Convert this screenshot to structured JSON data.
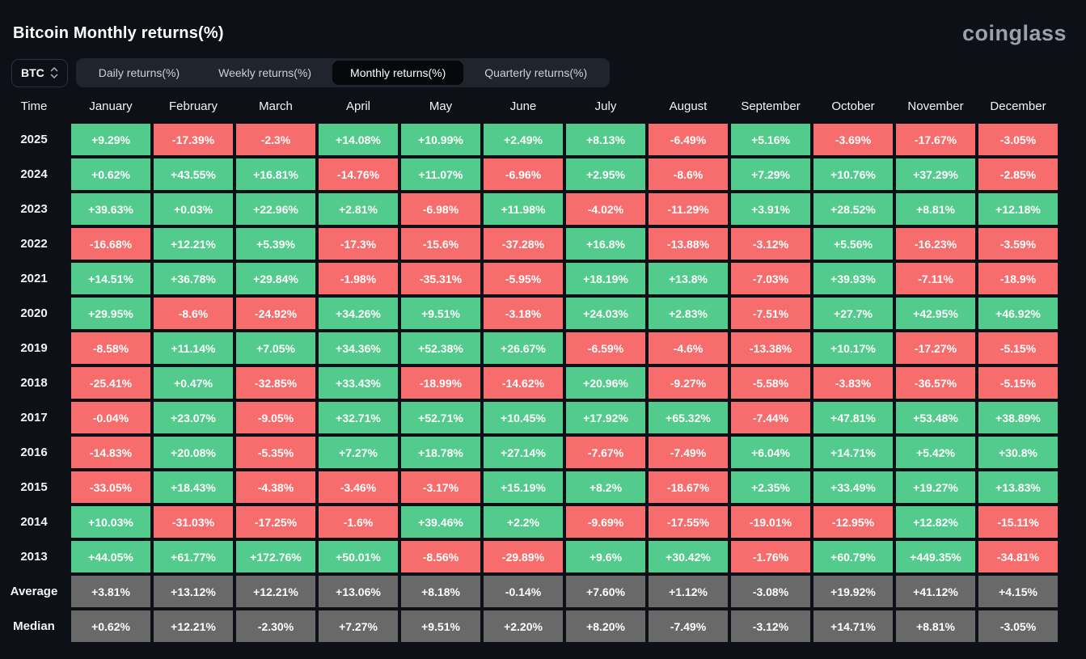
{
  "page": {
    "title": "Bitcoin Monthly returns(%)",
    "brand": "coinglass"
  },
  "controls": {
    "coin_select": {
      "value": "BTC",
      "icon": "updown-chevrons-icon"
    },
    "tabs": [
      {
        "label": "Daily returns(%)",
        "active": false
      },
      {
        "label": "Weekly returns(%)",
        "active": false
      },
      {
        "label": "Monthly returns(%)",
        "active": true
      },
      {
        "label": "Quarterly returns(%)",
        "active": false
      }
    ]
  },
  "colors": {
    "background": "#0d1016",
    "positive_cell": "#52cb8c",
    "negative_cell": "#f76d6d",
    "summary_cell": "#696969",
    "active_tab_bg": "#06080c",
    "brand_text": "#99a1ac"
  },
  "chart_data": {
    "type": "heatmap",
    "title": "Bitcoin Monthly returns(%)",
    "row_header": "Time",
    "columns": [
      "January",
      "February",
      "March",
      "April",
      "May",
      "June",
      "July",
      "August",
      "September",
      "October",
      "November",
      "December"
    ],
    "rows": [
      {
        "label": "2025",
        "values": [
          "+9.29%",
          "-17.39%",
          "-2.3%",
          "+14.08%",
          "+10.99%",
          "+2.49%",
          "+8.13%",
          "-6.49%",
          "+5.16%",
          "-3.69%",
          "-17.67%",
          "-3.05%"
        ]
      },
      {
        "label": "2024",
        "values": [
          "+0.62%",
          "+43.55%",
          "+16.81%",
          "-14.76%",
          "+11.07%",
          "-6.96%",
          "+2.95%",
          "-8.6%",
          "+7.29%",
          "+10.76%",
          "+37.29%",
          "-2.85%"
        ]
      },
      {
        "label": "2023",
        "values": [
          "+39.63%",
          "+0.03%",
          "+22.96%",
          "+2.81%",
          "-6.98%",
          "+11.98%",
          "-4.02%",
          "-11.29%",
          "+3.91%",
          "+28.52%",
          "+8.81%",
          "+12.18%"
        ]
      },
      {
        "label": "2022",
        "values": [
          "-16.68%",
          "+12.21%",
          "+5.39%",
          "-17.3%",
          "-15.6%",
          "-37.28%",
          "+16.8%",
          "-13.88%",
          "-3.12%",
          "+5.56%",
          "-16.23%",
          "-3.59%"
        ]
      },
      {
        "label": "2021",
        "values": [
          "+14.51%",
          "+36.78%",
          "+29.84%",
          "-1.98%",
          "-35.31%",
          "-5.95%",
          "+18.19%",
          "+13.8%",
          "-7.03%",
          "+39.93%",
          "-7.11%",
          "-18.9%"
        ]
      },
      {
        "label": "2020",
        "values": [
          "+29.95%",
          "-8.6%",
          "-24.92%",
          "+34.26%",
          "+9.51%",
          "-3.18%",
          "+24.03%",
          "+2.83%",
          "-7.51%",
          "+27.7%",
          "+42.95%",
          "+46.92%"
        ]
      },
      {
        "label": "2019",
        "values": [
          "-8.58%",
          "+11.14%",
          "+7.05%",
          "+34.36%",
          "+52.38%",
          "+26.67%",
          "-6.59%",
          "-4.6%",
          "-13.38%",
          "+10.17%",
          "-17.27%",
          "-5.15%"
        ]
      },
      {
        "label": "2018",
        "values": [
          "-25.41%",
          "+0.47%",
          "-32.85%",
          "+33.43%",
          "-18.99%",
          "-14.62%",
          "+20.96%",
          "-9.27%",
          "-5.58%",
          "-3.83%",
          "-36.57%",
          "-5.15%"
        ]
      },
      {
        "label": "2017",
        "values": [
          "-0.04%",
          "+23.07%",
          "-9.05%",
          "+32.71%",
          "+52.71%",
          "+10.45%",
          "+17.92%",
          "+65.32%",
          "-7.44%",
          "+47.81%",
          "+53.48%",
          "+38.89%"
        ]
      },
      {
        "label": "2016",
        "values": [
          "-14.83%",
          "+20.08%",
          "-5.35%",
          "+7.27%",
          "+18.78%",
          "+27.14%",
          "-7.67%",
          "-7.49%",
          "+6.04%",
          "+14.71%",
          "+5.42%",
          "+30.8%"
        ]
      },
      {
        "label": "2015",
        "values": [
          "-33.05%",
          "+18.43%",
          "-4.38%",
          "-3.46%",
          "-3.17%",
          "+15.19%",
          "+8.2%",
          "-18.67%",
          "+2.35%",
          "+33.49%",
          "+19.27%",
          "+13.83%"
        ]
      },
      {
        "label": "2014",
        "values": [
          "+10.03%",
          "-31.03%",
          "-17.25%",
          "-1.6%",
          "+39.46%",
          "+2.2%",
          "-9.69%",
          "-17.55%",
          "-19.01%",
          "-12.95%",
          "+12.82%",
          "-15.11%"
        ]
      },
      {
        "label": "2013",
        "values": [
          "+44.05%",
          "+61.77%",
          "+172.76%",
          "+50.01%",
          "-8.56%",
          "-29.89%",
          "+9.6%",
          "+30.42%",
          "-1.76%",
          "+60.79%",
          "+449.35%",
          "-34.81%"
        ]
      }
    ],
    "summary_rows": [
      {
        "label": "Average",
        "values": [
          "+3.81%",
          "+13.12%",
          "+12.21%",
          "+13.06%",
          "+8.18%",
          "-0.14%",
          "+7.60%",
          "+1.12%",
          "-3.08%",
          "+19.92%",
          "+41.12%",
          "+4.15%"
        ]
      },
      {
        "label": "Median",
        "values": [
          "+0.62%",
          "+12.21%",
          "-2.30%",
          "+7.27%",
          "+9.51%",
          "+2.20%",
          "+8.20%",
          "-7.49%",
          "-3.12%",
          "+14.71%",
          "+8.81%",
          "-3.05%"
        ]
      }
    ]
  }
}
